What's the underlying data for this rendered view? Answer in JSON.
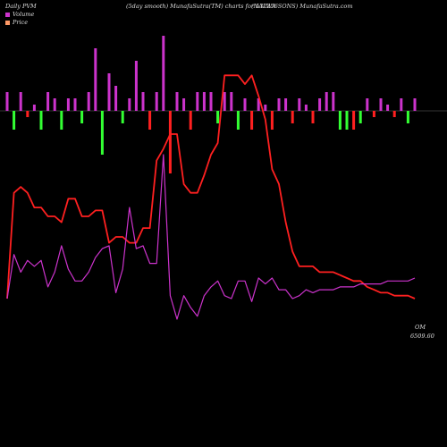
{
  "header": {
    "left": "Daily PVM",
    "middle": "(5day smooth) MunafaSutra(TM) charts for 532256",
    "right": "(NALWA SONS) MunafaSutra.com"
  },
  "legend": [
    {
      "label": "Volume",
      "color": "#cc33cc"
    },
    {
      "label": "Price",
      "color": "#ff9966"
    }
  ],
  "chart_data": {
    "type": "line",
    "price_last_label": "6509.60",
    "price_last_suffix": "OM",
    "series": [
      {
        "name": "Price",
        "color": "#ff2020",
        "values": [
          6509,
          6545,
          6547,
          6545,
          6540,
          6540,
          6537,
          6537,
          6535,
          6543,
          6543,
          6537,
          6537,
          6539,
          6539,
          6528,
          6530,
          6530,
          6528,
          6528,
          6533,
          6533,
          6556,
          6560,
          6565,
          6565,
          6548,
          6545,
          6545,
          6551,
          6558,
          6562,
          6585,
          6585,
          6585,
          6582,
          6585,
          6578,
          6570,
          6553,
          6548,
          6535,
          6525,
          6520,
          6520,
          6520,
          6518,
          6518,
          6518,
          6517,
          6516,
          6515,
          6515,
          6513,
          6512,
          6511,
          6511,
          6510,
          6510,
          6510,
          6509
        ]
      },
      {
        "name": "Volume",
        "color": "#cc33cc",
        "values": [
          6509,
          6524,
          6518,
          6522,
          6520,
          6522,
          6513,
          6518,
          6527,
          6519,
          6515,
          6515,
          6518,
          6523,
          6526,
          6527,
          6511,
          6519,
          6540,
          6526,
          6527,
          6521,
          6521,
          6558,
          6510,
          6502,
          6510,
          6506,
          6503,
          6510,
          6513,
          6515,
          6510,
          6509,
          6515,
          6515,
          6508,
          6516,
          6514,
          6516,
          6512,
          6512,
          6509,
          6510,
          6512,
          6511,
          6512,
          6512,
          6512,
          6513,
          6513,
          6513,
          6514,
          6514,
          6514,
          6514,
          6515,
          6515,
          6515,
          6515,
          6516
        ]
      }
    ],
    "volume_bars": [
      3,
      -3,
      3,
      -1,
      1,
      -3,
      3,
      2,
      -3,
      2,
      2,
      -2,
      3,
      10,
      -7,
      6,
      4,
      -2,
      2,
      8,
      3,
      -3,
      3,
      12,
      -10,
      3,
      2,
      -3,
      3,
      3,
      3,
      -2,
      3,
      3,
      -3,
      2,
      -3,
      2,
      1,
      -3,
      2,
      2,
      -2,
      2,
      1,
      -2,
      2,
      3,
      3,
      -3,
      -3,
      -3,
      -2,
      2,
      -1,
      2,
      1,
      -1,
      2,
      -2,
      2
    ]
  }
}
